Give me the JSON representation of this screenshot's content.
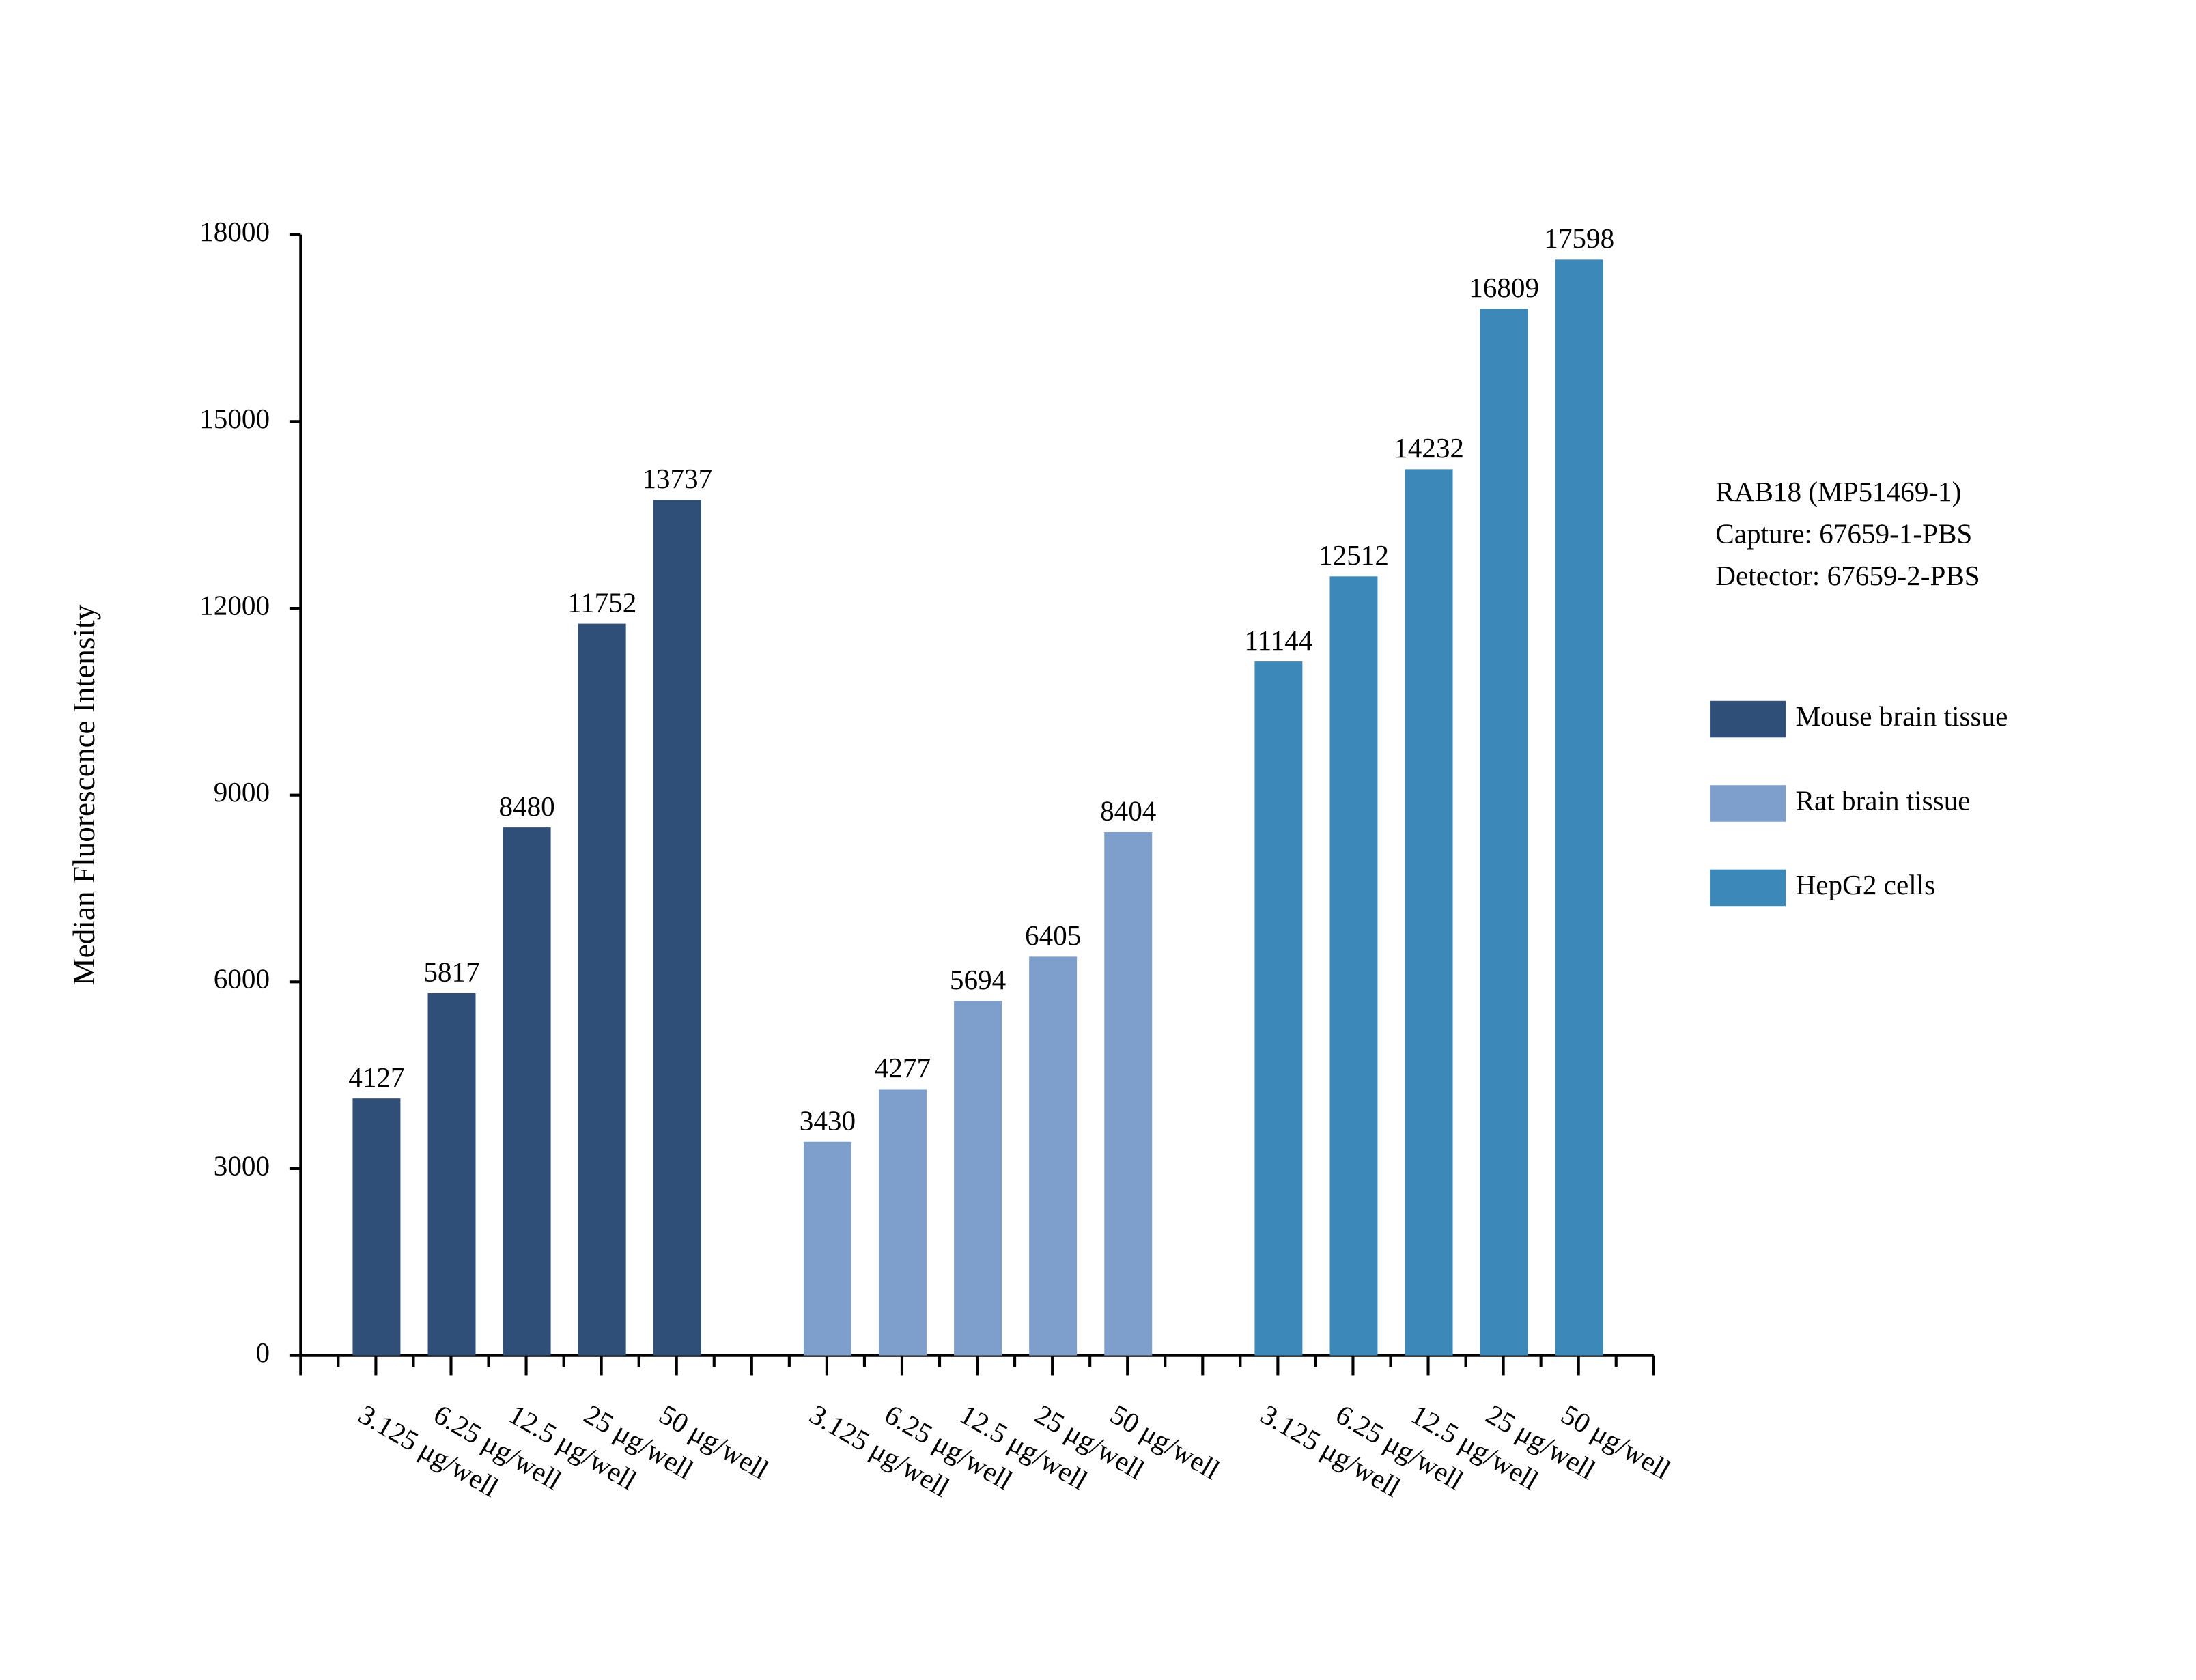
{
  "chart_data": {
    "type": "bar",
    "ylabel": "Median Fluorescence Intensity",
    "annotations": [
      "RAB18 (MP51469-1)",
      "Capture: 67659-1-PBS",
      "Detector: 67659-2-PBS"
    ],
    "categories": [
      "3.125 μg/well",
      "6.25 μg/well",
      "12.5 μg/well",
      "25 μg/well",
      "50 μg/well"
    ],
    "series": [
      {
        "name": "Mouse brain tissue",
        "color": "#2f4f79",
        "values": [
          4127,
          5817,
          8480,
          11752,
          13737
        ]
      },
      {
        "name": "Rat brain tissue",
        "color": "#7e9ecb",
        "values": [
          3430,
          4277,
          5694,
          6405,
          8404
        ]
      },
      {
        "name": "HepG2 cells",
        "color": "#3c88b8",
        "values": [
          11144,
          12512,
          14232,
          16809,
          17598
        ]
      }
    ],
    "ylim": [
      0,
      18000
    ],
    "yticks": [
      0,
      3000,
      6000,
      9000,
      12000,
      15000,
      18000
    ]
  }
}
